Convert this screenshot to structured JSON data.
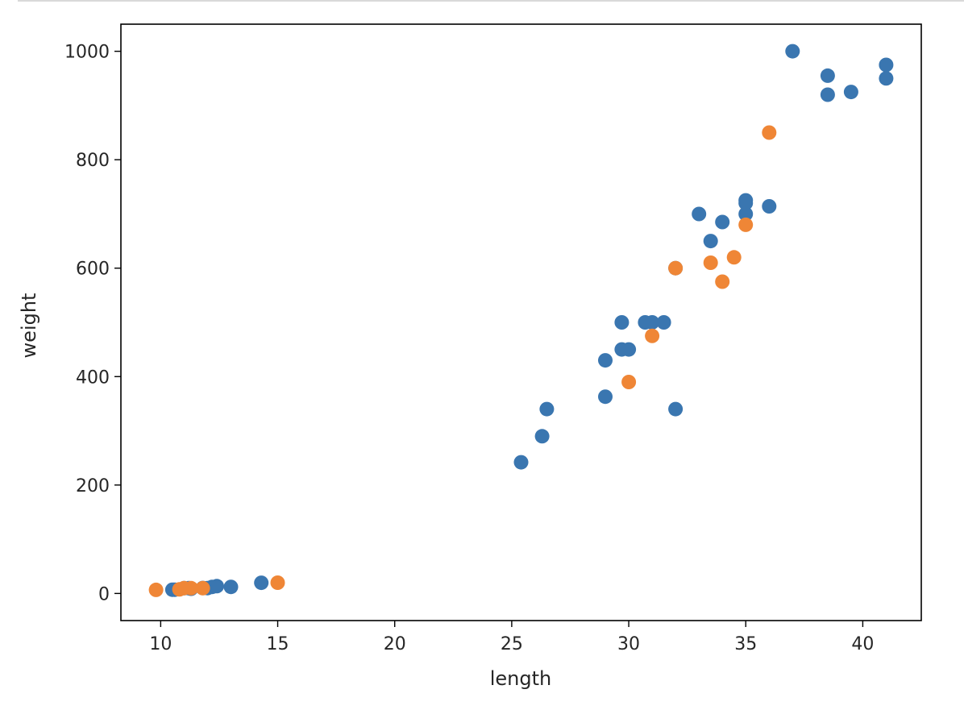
{
  "chart_data": {
    "type": "scatter",
    "title": "",
    "xlabel": "length",
    "ylabel": "weight",
    "xlim": [
      8.3,
      42.5
    ],
    "ylim": [
      -50,
      1050
    ],
    "xticks": [
      10,
      15,
      20,
      25,
      30,
      35,
      40
    ],
    "yticks": [
      0,
      200,
      400,
      600,
      800,
      1000
    ],
    "grid": false,
    "legend": "none",
    "series": [
      {
        "color": "#3a76b0",
        "points": [
          [
            10.5,
            7
          ],
          [
            10.6,
            7
          ],
          [
            11.0,
            9.7
          ],
          [
            11.2,
            9.8
          ],
          [
            11.3,
            8.7
          ],
          [
            11.8,
            10
          ],
          [
            12.0,
            9.9
          ],
          [
            12.2,
            12.2
          ],
          [
            12.4,
            13.4
          ],
          [
            13.0,
            12.2
          ],
          [
            14.3,
            19.7
          ],
          [
            25.4,
            242
          ],
          [
            26.3,
            290
          ],
          [
            26.5,
            340
          ],
          [
            29.0,
            363
          ],
          [
            29.0,
            430
          ],
          [
            29.7,
            450
          ],
          [
            29.7,
            500
          ],
          [
            30.0,
            450
          ],
          [
            30.7,
            500
          ],
          [
            31.0,
            500
          ],
          [
            31.5,
            500
          ],
          [
            32.0,
            340
          ],
          [
            32.0,
            600
          ],
          [
            33.0,
            700
          ],
          [
            33.5,
            650
          ],
          [
            34.0,
            685
          ],
          [
            35.0,
            700
          ],
          [
            35.0,
            725
          ],
          [
            35.0,
            720
          ],
          [
            36.0,
            714
          ],
          [
            37.0,
            1000
          ],
          [
            38.5,
            920
          ],
          [
            38.5,
            955
          ],
          [
            39.5,
            925
          ],
          [
            41.0,
            975
          ],
          [
            41.0,
            950
          ]
        ]
      },
      {
        "color": "#ef8636",
        "points": [
          [
            9.8,
            6.7
          ],
          [
            10.8,
            7.5
          ],
          [
            11.0,
            9.9
          ],
          [
            11.3,
            9.7
          ],
          [
            11.8,
            9.8
          ],
          [
            15.0,
            19.9
          ],
          [
            30.0,
            390
          ],
          [
            31.0,
            475
          ],
          [
            32.0,
            600
          ],
          [
            33.5,
            610
          ],
          [
            34.0,
            575
          ],
          [
            34.5,
            620
          ],
          [
            35.0,
            680
          ],
          [
            36.0,
            850
          ]
        ]
      }
    ]
  }
}
